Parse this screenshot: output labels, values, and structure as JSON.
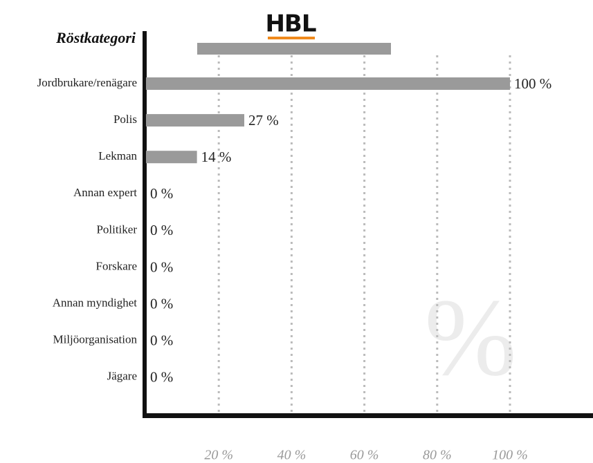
{
  "header": {
    "logo": "HBL"
  },
  "chart_data": {
    "type": "bar",
    "orientation": "horizontal",
    "y_label": "Röstkategori",
    "watermark": "%",
    "categories": [
      "Jordbrukare/renägare",
      "Polis",
      "Lekman",
      "Annan expert",
      "Politiker",
      "Forskare",
      "Annan myndighet",
      "Miljöorganisation",
      "Jägare"
    ],
    "values": [
      100,
      27,
      14,
      0,
      0,
      0,
      0,
      0,
      0
    ],
    "value_labels": [
      "100 %",
      "27 %",
      "14 %",
      "0 %",
      "0 %",
      "0 %",
      "0 %",
      "0 %",
      "0 %"
    ],
    "color": "#9a9a9a",
    "xlim": [
      0,
      100
    ],
    "xticks": [
      {
        "value": 20,
        "label": "20 %"
      },
      {
        "value": 40,
        "label": "40 %"
      },
      {
        "value": 60,
        "label": "60 %"
      },
      {
        "value": 80,
        "label": "80 %"
      },
      {
        "value": 100,
        "label": "100 %"
      }
    ],
    "grid": true
  }
}
